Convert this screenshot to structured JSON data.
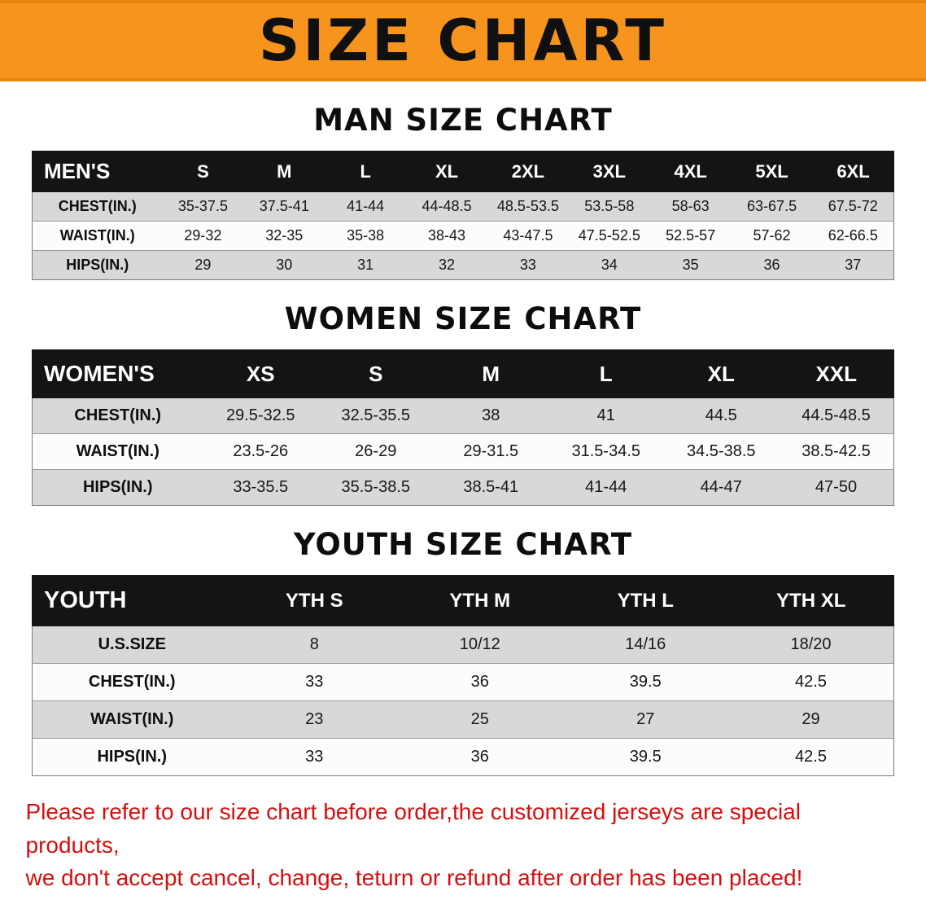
{
  "banner": {
    "title": "SIZE CHART"
  },
  "colors": {
    "banner_background": "#f7941d",
    "table_header_background": "#141414",
    "row_shade": "#d8d8d8",
    "notice_text": "#d40f0f"
  },
  "sections": {
    "men": {
      "heading": "MAN SIZE CHART",
      "table": {
        "header": [
          "MEN'S",
          "S",
          "M",
          "L",
          "XL",
          "2XL",
          "3XL",
          "4XL",
          "5XL",
          "6XL"
        ],
        "rows": [
          [
            "CHEST(IN.)",
            "35-37.5",
            "37.5-41",
            "41-44",
            "44-48.5",
            "48.5-53.5",
            "53.5-58",
            "58-63",
            "63-67.5",
            "67.5-72"
          ],
          [
            "WAIST(IN.)",
            "29-32",
            "32-35",
            "35-38",
            "38-43",
            "43-47.5",
            "47.5-52.5",
            "52.5-57",
            "57-62",
            "62-66.5"
          ],
          [
            "HIPS(IN.)",
            "29",
            "30",
            "31",
            "32",
            "33",
            "34",
            "35",
            "36",
            "37"
          ]
        ]
      }
    },
    "women": {
      "heading": "WOMEN SIZE CHART",
      "table": {
        "header": [
          "WOMEN'S",
          "XS",
          "S",
          "M",
          "L",
          "XL",
          "XXL"
        ],
        "rows": [
          [
            "CHEST(IN.)",
            "29.5-32.5",
            "32.5-35.5",
            "38",
            "41",
            "44.5",
            "44.5-48.5"
          ],
          [
            "WAIST(IN.)",
            "23.5-26",
            "26-29",
            "29-31.5",
            "31.5-34.5",
            "34.5-38.5",
            "38.5-42.5"
          ],
          [
            "HIPS(IN.)",
            "33-35.5",
            "35.5-38.5",
            "38.5-41",
            "41-44",
            "44-47",
            "47-50"
          ]
        ]
      }
    },
    "youth": {
      "heading": "YOUTH SIZE CHART",
      "table": {
        "header": [
          "YOUTH",
          "YTH S",
          "YTH M",
          "YTH L",
          "YTH XL"
        ],
        "rows": [
          [
            "U.S.SIZE",
            "8",
            "10/12",
            "14/16",
            "18/20"
          ],
          [
            "CHEST(IN.)",
            "33",
            "36",
            "39.5",
            "42.5"
          ],
          [
            "WAIST(IN.)",
            "23",
            "25",
            "27",
            "29"
          ],
          [
            "HIPS(IN.)",
            "33",
            "36",
            "39.5",
            "42.5"
          ]
        ]
      }
    }
  },
  "footer": {
    "line1": "Please refer to our size chart before order,the customized jerseys are special products,",
    "line2": "we don't accept cancel, change, teturn or refund after order has been placed!"
  }
}
